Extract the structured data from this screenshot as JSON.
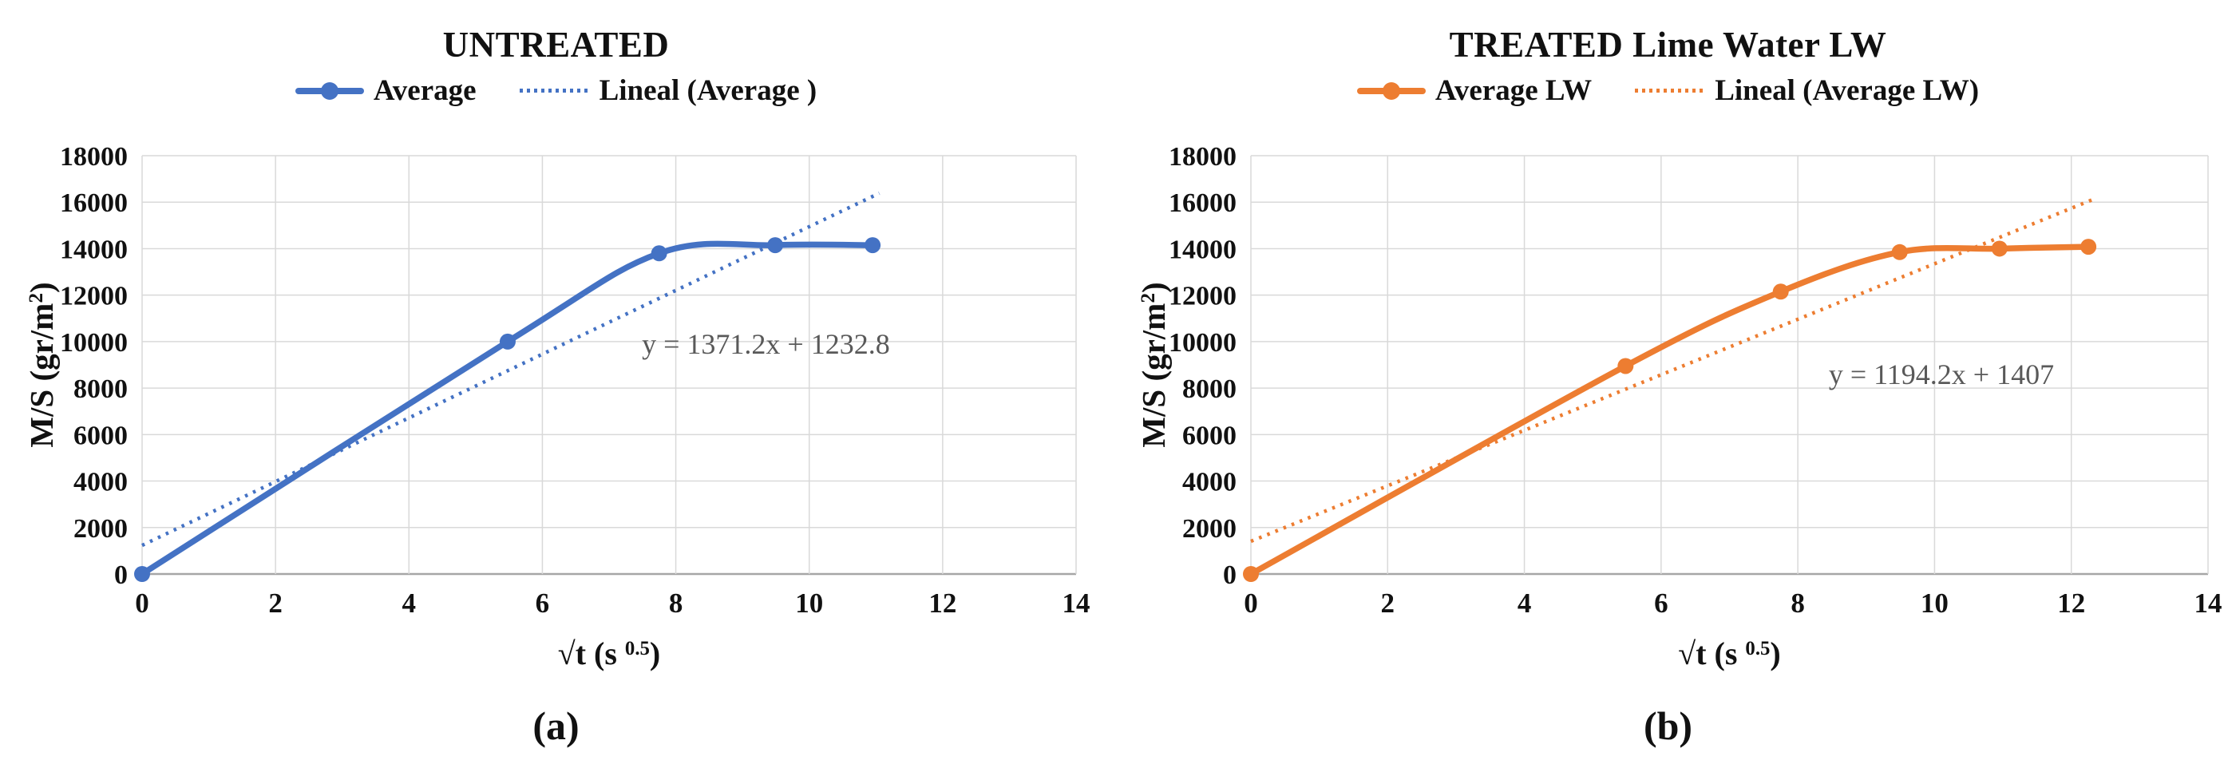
{
  "chart_data": [
    {
      "type": "line",
      "title": "UNTREATED",
      "caption": "(a)",
      "color": "#4472C4",
      "legend": [
        {
          "label": "Average",
          "style": "solid-marker"
        },
        {
          "label": "Lineal (Average )",
          "style": "dotted"
        }
      ],
      "x_axis": {
        "min": 0,
        "max": 14,
        "step": 2,
        "title_main": "√t (s ",
        "title_sup": "0.5",
        "title_end": ")"
      },
      "y_axis": {
        "min": 0,
        "max": 18000,
        "step": 2000,
        "title_main": "M/S (gr/m",
        "title_sup": "2",
        "title_end": ")"
      },
      "series": [
        {
          "name": "Average",
          "x": [
            0,
            5.48,
            7.75,
            9.49,
            10.95
          ],
          "y": [
            0,
            10000,
            13800,
            14150,
            14150
          ]
        }
      ],
      "trendline": {
        "name": "Lineal (Average )",
        "equation": "y = 1371.2x + 1232.8",
        "slope": 1371.2,
        "intercept": 1232.8,
        "x_start": 0,
        "x_end": 11.05,
        "label_at": {
          "x": 9.35,
          "y": 9900
        }
      },
      "grid": true,
      "legend_position": "top"
    },
    {
      "type": "line",
      "title": "TREATED Lime Water LW",
      "caption": "(b)",
      "color": "#ED7D31",
      "legend": [
        {
          "label": "Average LW",
          "style": "solid-marker"
        },
        {
          "label": "Lineal (Average LW)",
          "style": "dotted"
        }
      ],
      "x_axis": {
        "min": 0,
        "max": 14,
        "step": 2,
        "title_main": "√t (s ",
        "title_sup": "0.5",
        "title_end": ")"
      },
      "y_axis": {
        "min": 0,
        "max": 18000,
        "step": 2000,
        "title_main": "M/S (gr/m",
        "title_sup": "2",
        "title_end": ")"
      },
      "series": [
        {
          "name": "Average LW",
          "x": [
            0,
            5.48,
            7.75,
            9.49,
            10.95,
            12.25
          ],
          "y": [
            0,
            8950,
            12150,
            13850,
            14000,
            14080
          ]
        }
      ],
      "trendline": {
        "name": "Lineal (Average LW)",
        "equation": "y = 1194.2x + 1407",
        "slope": 1194.2,
        "intercept": 1407,
        "x_start": 0,
        "x_end": 12.3,
        "label_at": {
          "x": 10.1,
          "y": 8600
        }
      },
      "grid": true,
      "legend_position": "top"
    }
  ],
  "style_colors": {
    "gridline": "#D9D9D9",
    "axis_line": "#A6A6A6",
    "equation_text": "#595959"
  }
}
